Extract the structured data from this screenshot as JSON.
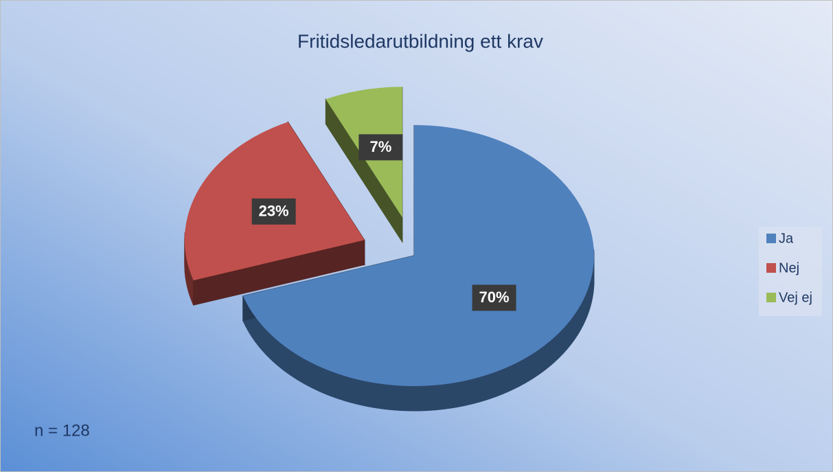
{
  "chart_data": {
    "type": "pie",
    "title": "Fritidsledarutbildning ett krav",
    "categories": [
      "Ja",
      "Nej",
      "Vej ej"
    ],
    "values": [
      70,
      23,
      7
    ],
    "value_labels": [
      "70%",
      "23%",
      "7%"
    ],
    "colors": [
      "#4f81bd",
      "#c0504d",
      "#9bbb59"
    ],
    "legend": "right",
    "annotation": "n = 128"
  }
}
